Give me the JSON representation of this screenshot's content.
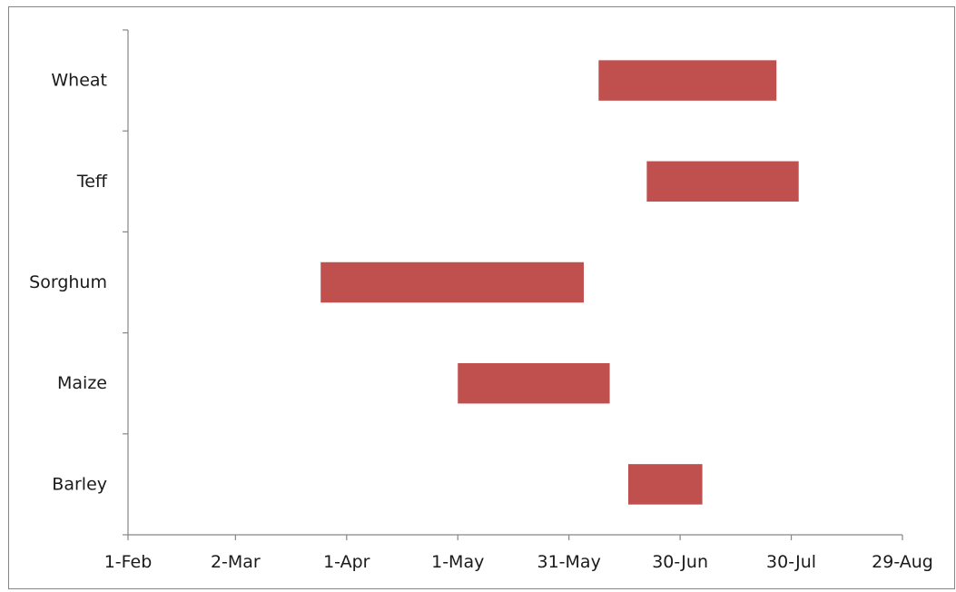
{
  "chart_data": {
    "type": "bar",
    "orientation": "horizontal",
    "subtype": "floating-range",
    "title": "",
    "xlabel": "",
    "ylabel": "",
    "categories": [
      "Barley",
      "Maize",
      "Sorghum",
      "Teff",
      "Wheat"
    ],
    "category_order": "bottom-to-top",
    "series": [
      {
        "ranges": [
          {
            "category": "Barley",
            "start": "2014-06-16",
            "end": "2014-07-06"
          },
          {
            "category": "Maize",
            "start": "2014-05-01",
            "end": "2014-06-11"
          },
          {
            "category": "Sorghum",
            "start": "2014-03-25",
            "end": "2014-06-04"
          },
          {
            "category": "Teff",
            "start": "2014-06-21",
            "end": "2014-08-01"
          },
          {
            "category": "Wheat",
            "start": "2014-06-08",
            "end": "2014-07-26"
          }
        ]
      }
    ],
    "x_ticks": [
      {
        "date": "2014-02-01",
        "label": "1-Feb"
      },
      {
        "date": "2014-03-02",
        "label": "2-Mar"
      },
      {
        "date": "2014-04-01",
        "label": "1-Apr"
      },
      {
        "date": "2014-05-01",
        "label": "1-May"
      },
      {
        "date": "2014-05-31",
        "label": "31-May"
      },
      {
        "date": "2014-06-30",
        "label": "30-Jun"
      },
      {
        "date": "2014-07-30",
        "label": "30-Jul"
      },
      {
        "date": "2014-08-29",
        "label": "29-Aug"
      }
    ],
    "xlim": [
      "2014-02-01",
      "2014-08-29"
    ],
    "grid": false,
    "legend": "none",
    "colors": {
      "bar": "#c0504d",
      "axis": "#868686",
      "text": "#1a1a1a"
    }
  }
}
